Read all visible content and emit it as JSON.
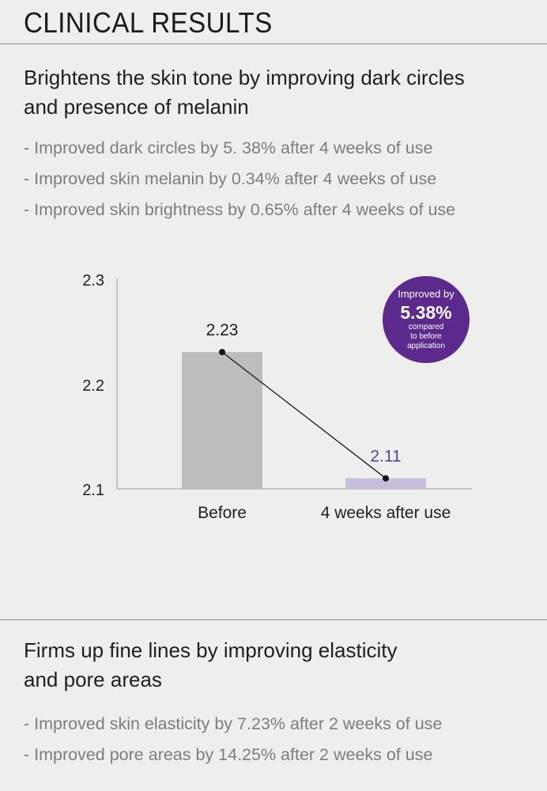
{
  "page": {
    "title": "CLINICAL RESULTS"
  },
  "section1": {
    "heading_line1": "Brightens the skin tone by improving dark circles",
    "heading_line2": "and presence of melanin",
    "bullets": [
      "- Improved dark circles by 5. 38% after 4 weeks of use",
      "- Improved skin melanin by 0.34% after 4 weeks of use",
      "- Improved skin brightness by 0.65% after 4 weeks of use"
    ]
  },
  "section2": {
    "heading_line1": "Firms up fine lines by improving elasticity",
    "heading_line2": "and pore areas",
    "bullets": [
      "- Improved skin elasticity by 7.23% after 2 weeks of use",
      "- Improved pore areas by 14.25% after 2 weeks of use"
    ]
  },
  "badge": {
    "line1": "Improved by",
    "value": "5.38%",
    "line2": "compared",
    "line3": "to before",
    "line4": "application"
  },
  "colors": {
    "before_bar": "#bdbdbd",
    "after_bar": "#c7bedb",
    "after_label": "#5b3f9a",
    "badge": "#5b2a8c",
    "text": "#1f1f1f",
    "muted": "#7d7d7d"
  },
  "chart_data": {
    "type": "bar",
    "categories": [
      "Before",
      "4 weeks after use"
    ],
    "values": [
      2.23,
      2.11
    ],
    "value_labels": [
      "2.23",
      "2.11"
    ],
    "ylim": [
      2.1,
      2.3
    ],
    "yticks": [
      "2.1",
      "2.2",
      "2.3"
    ],
    "grid": false,
    "legend": "none",
    "connector_line": true
  }
}
